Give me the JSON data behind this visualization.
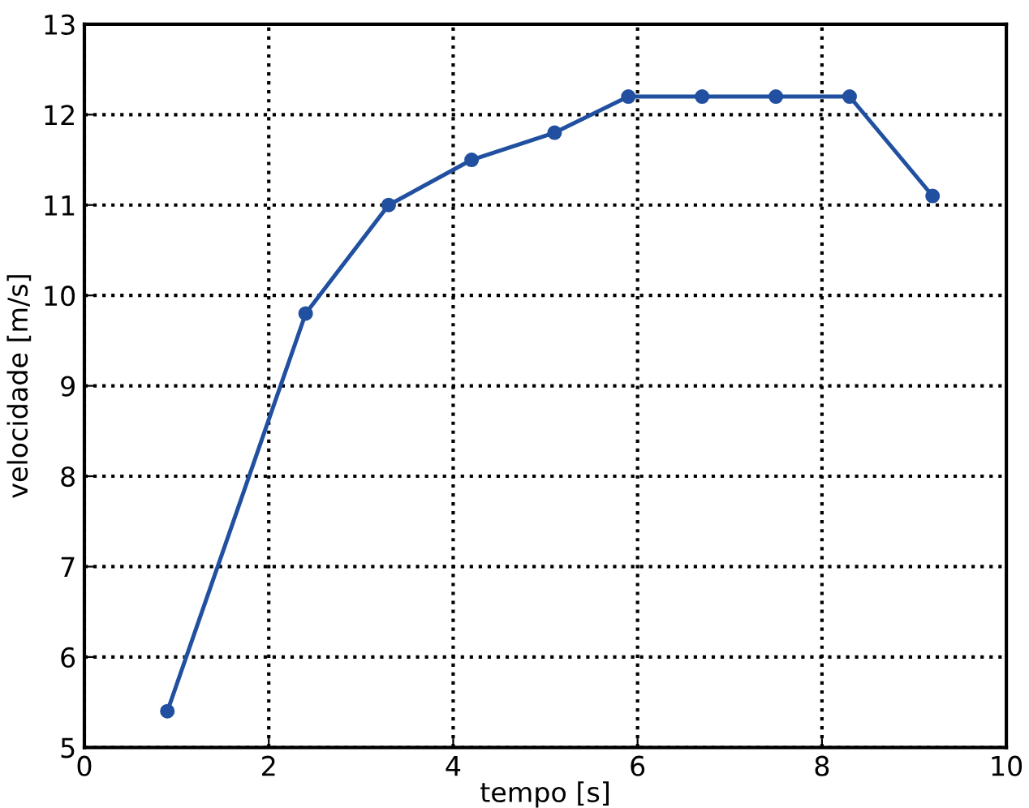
{
  "chart_data": {
    "type": "line",
    "xlabel": "tempo [s]",
    "ylabel": "velocidade [m/s]",
    "x": [
      0.9,
      2.4,
      3.3,
      4.2,
      5.1,
      5.9,
      6.7,
      7.5,
      8.3,
      9.2
    ],
    "series": [
      {
        "color": "#2150a0",
        "values": [
          5.4,
          9.8,
          11.0,
          11.5,
          11.8,
          12.2,
          12.2,
          12.2,
          12.2,
          11.1
        ]
      }
    ],
    "xlim": [
      0,
      10
    ],
    "xticks": [
      0,
      2,
      4,
      6,
      8,
      10
    ],
    "ylim": [
      5,
      13
    ],
    "yticks": [
      5,
      6,
      7,
      8,
      9,
      10,
      11,
      12,
      13
    ],
    "grid": true,
    "marker": "circle",
    "line_style": "solid"
  }
}
